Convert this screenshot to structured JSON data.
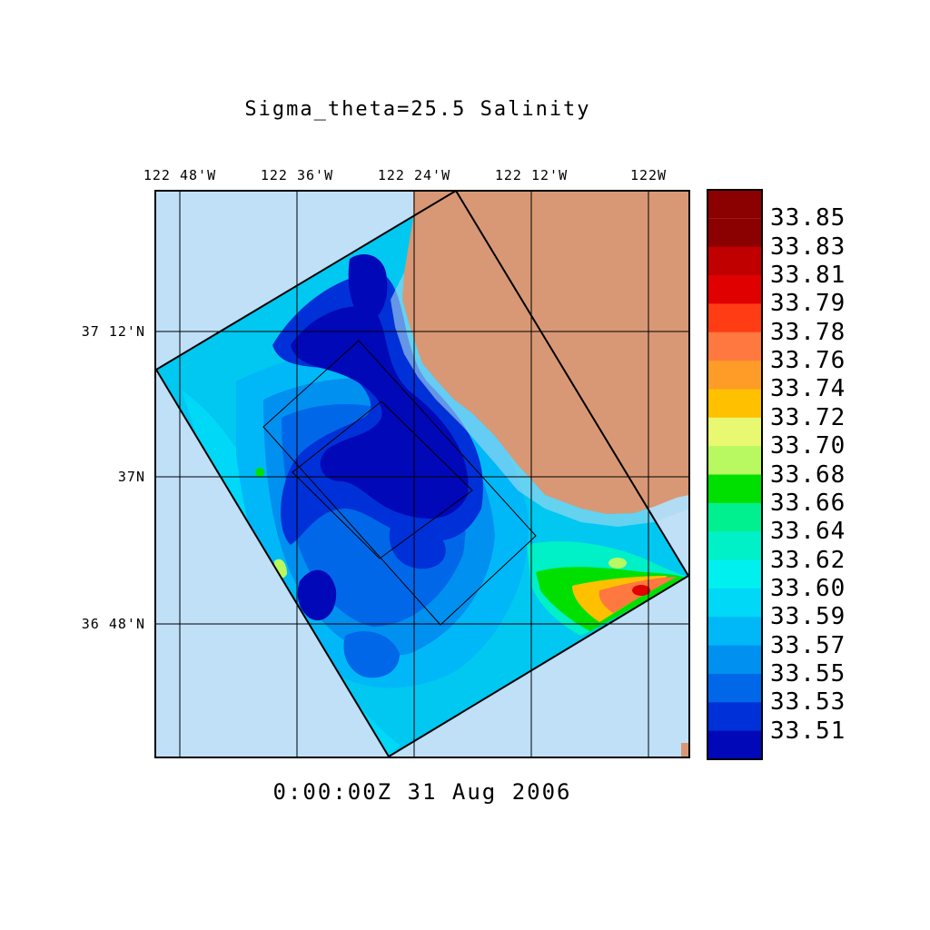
{
  "title": "Sigma_theta=25.5 Salinity",
  "timestamp": "0:00:00Z  31 Aug 2006",
  "longitude_labels": [
    "122 48'W",
    "122 36'W",
    "122 24'W",
    "122 12'W",
    "122W"
  ],
  "latitude_labels": [
    "37 12'N",
    "37N",
    "36 48'N"
  ],
  "colorbar": {
    "labels": [
      "33.85",
      "33.83",
      "33.81",
      "33.79",
      "33.78",
      "33.76",
      "33.74",
      "33.72",
      "33.70",
      "33.68",
      "33.66",
      "33.64",
      "33.62",
      "33.60",
      "33.59",
      "33.57",
      "33.55",
      "33.53",
      "33.51"
    ],
    "colors": [
      "#8b0000",
      "#c00000",
      "#e00000",
      "#ff3c14",
      "#ff7840",
      "#ff9c28",
      "#ffc000",
      "#e8f870",
      "#b8f860",
      "#00e000",
      "#00f090",
      "#00f0c8",
      "#00f0f0",
      "#00d8f8",
      "#00b8f8",
      "#0090f0",
      "#0068e8",
      "#0030d8",
      "#0008b8"
    ]
  },
  "colors": {
    "ocean": "#c0e0f8",
    "land": "#d99875",
    "low_salinity": "#00089c",
    "mid_salinity": "#00c8f0",
    "high_salinity": "#ff6030"
  }
}
